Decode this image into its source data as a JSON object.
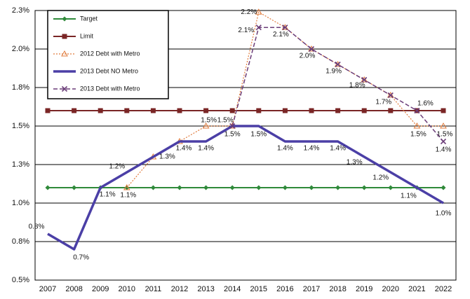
{
  "chart_data": {
    "type": "line",
    "categories": [
      "2007",
      "2008",
      "2009",
      "2010",
      "2011",
      "2012",
      "2013",
      "2014",
      "2015",
      "2016",
      "2017",
      "2018",
      "2019",
      "2020",
      "2021",
      "2022"
    ],
    "series": [
      {
        "name": "Target",
        "color": "#2f8a3a",
        "marker": "diamond",
        "style": "solid",
        "values": [
          1.1,
          1.1,
          1.1,
          1.1,
          1.1,
          1.1,
          1.1,
          1.1,
          1.1,
          1.1,
          1.1,
          1.1,
          1.1,
          1.1,
          1.1,
          1.1
        ]
      },
      {
        "name": "Limit",
        "color": "#7a2626",
        "marker": "square",
        "style": "solid",
        "values": [
          1.6,
          1.6,
          1.6,
          1.6,
          1.6,
          1.6,
          1.6,
          1.6,
          1.6,
          1.6,
          1.6,
          1.6,
          1.6,
          1.6,
          1.6,
          1.6
        ]
      },
      {
        "name": "2012 Debt with Metro",
        "color": "#e07b3c",
        "marker": "triangle",
        "style": "dotted",
        "values": [
          null,
          null,
          null,
          1.1,
          1.3,
          1.4,
          1.5,
          1.5,
          2.24,
          2.14,
          2.0,
          1.9,
          1.8,
          1.7,
          1.5,
          1.5
        ],
        "value_labels": [
          null,
          null,
          null,
          "1.1%",
          null,
          null,
          "1.5%",
          null,
          "2.2%",
          null,
          null,
          null,
          null,
          null,
          "1.5%",
          "1.5%"
        ]
      },
      {
        "name": "2013 Debt NO Metro",
        "color": "#4b3fa6",
        "marker": "none",
        "style": "thick",
        "values": [
          0.8,
          0.7,
          1.1,
          1.2,
          1.3,
          1.4,
          1.4,
          1.5,
          1.5,
          1.4,
          1.4,
          1.4,
          1.3,
          1.2,
          1.1,
          1.0
        ],
        "value_labels": [
          "0.8%",
          "0.7%",
          "1.1%",
          "1.2%",
          "1.3%",
          "1.4%",
          "1.4%",
          "1.5%",
          "1.5%",
          "1.4%",
          "1.4%",
          "1.4%",
          "1.3%",
          "1.2%",
          "1.1%",
          "1.0%"
        ]
      },
      {
        "name": "2013 Debt with Metro",
        "color": "#6b3d78",
        "marker": "x",
        "style": "dashed",
        "values": [
          null,
          null,
          null,
          null,
          null,
          null,
          null,
          1.5,
          2.14,
          2.14,
          2.0,
          1.9,
          1.8,
          1.7,
          1.6,
          1.4
        ],
        "value_labels": [
          null,
          null,
          null,
          null,
          null,
          null,
          null,
          "1.5%",
          "2.1%",
          "2.1%",
          "2.0%",
          "1.9%",
          "1.8%",
          "1.7%",
          "1.6%",
          "1.4%"
        ]
      }
    ],
    "ylim": [
      0.5,
      2.25
    ],
    "yticks": [
      {
        "value": 0.5,
        "label": "0.5%"
      },
      {
        "value": 0.75,
        "label": "0.8%"
      },
      {
        "value": 1.0,
        "label": "1.0%"
      },
      {
        "value": 1.25,
        "label": "1.3%"
      },
      {
        "value": 1.5,
        "label": "1.5%"
      },
      {
        "value": 1.75,
        "label": "1.8%"
      },
      {
        "value": 2.0,
        "label": "2.0%"
      },
      {
        "value": 2.25,
        "label": "2.3%"
      }
    ],
    "grid": true,
    "legend": "upper left"
  }
}
